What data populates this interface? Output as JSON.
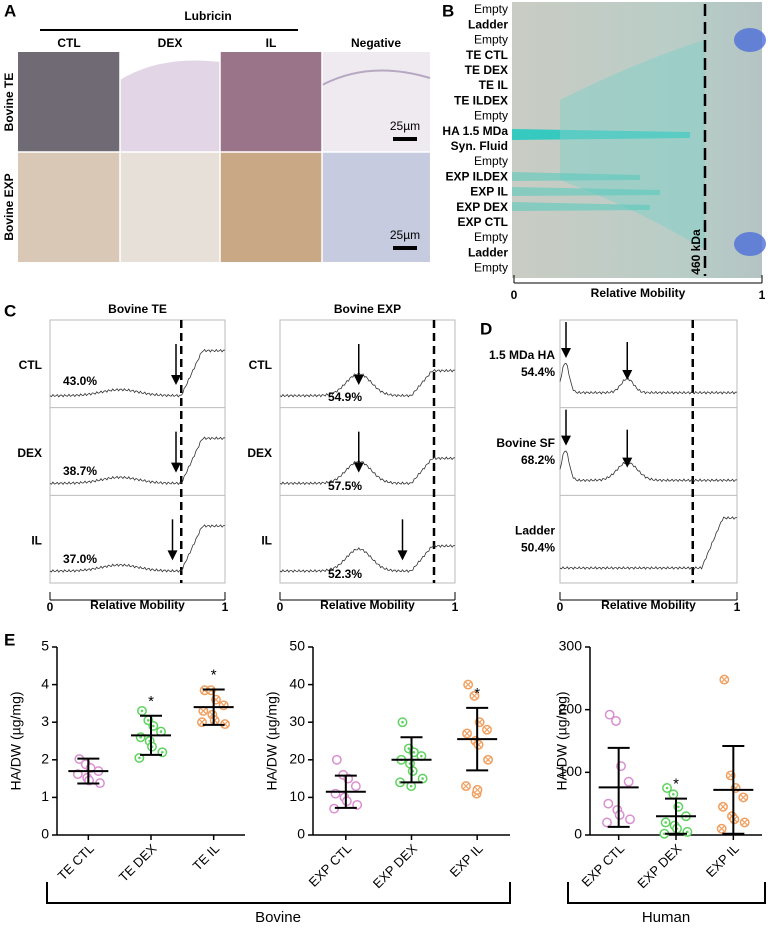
{
  "panel_a": {
    "label": "A",
    "group": "Lubricin",
    "columns": [
      "CTL",
      "DEX",
      "IL",
      "Negative"
    ],
    "rows": [
      "Bovine TE",
      "Bovine EXP"
    ],
    "scale_bars": [
      "25µm",
      "25µm"
    ]
  },
  "panel_b": {
    "label": "B",
    "lanes": [
      "Empty",
      "Ladder",
      "Empty",
      "TE CTL",
      "TE DEX",
      "TE IL",
      "TE ILDEX",
      "Empty",
      "HA 1.5 MDa",
      "Syn. Fluid",
      "Empty",
      "EXP ILDEX",
      "EXP IL",
      "EXP DEX",
      "EXP CTL",
      "Empty",
      "Ladder",
      "Empty"
    ],
    "marker": "460 kDa",
    "xlabel": "Relative Mobility",
    "xlim": [
      0,
      1
    ],
    "xticks": [
      0,
      1
    ]
  },
  "panel_c": {
    "label": "C",
    "xlabel": "Relative Mobility",
    "xlim": [
      0,
      1
    ],
    "xticks": [
      0,
      1
    ],
    "columns": [
      {
        "title": "Bovine TE",
        "rows": [
          {
            "name": "CTL",
            "percent": "43.0%"
          },
          {
            "name": "DEX",
            "percent": "38.7%"
          },
          {
            "name": "IL",
            "percent": "37.0%"
          }
        ]
      },
      {
        "title": "Bovine EXP",
        "rows": [
          {
            "name": "CTL",
            "percent": "54.9%"
          },
          {
            "name": "DEX",
            "percent": "57.5%"
          },
          {
            "name": "IL",
            "percent": "52.3%"
          }
        ]
      }
    ]
  },
  "panel_d": {
    "label": "D",
    "xlabel": "Relative Mobility",
    "xlim": [
      0,
      1
    ],
    "xticks": [
      0,
      1
    ],
    "rows": [
      {
        "name": "1.5 MDa HA",
        "percent": "54.4%"
      },
      {
        "name": "Bovine SF",
        "percent": "68.2%"
      },
      {
        "name": "Ladder",
        "percent": "50.4%"
      }
    ]
  },
  "panel_e": {
    "label": "E",
    "groups": [
      "Bovine",
      "Human"
    ]
  },
  "chart_data": [
    {
      "type": "dotplot",
      "ylabel": "HA/DW (µg/mg)",
      "ylim": [
        0,
        5
      ],
      "yticks": [
        0,
        1,
        2,
        3,
        4,
        5
      ],
      "categories": [
        "TE CTL",
        "TE DEX",
        "TE IL"
      ],
      "colors": [
        "#d98fd0",
        "#5fd35f",
        "#f0a060"
      ],
      "markers": [
        "circle",
        "dot",
        "cross"
      ],
      "values": [
        [
          2.02,
          1.88,
          1.78,
          1.7,
          1.62,
          1.52,
          1.45,
          1.38
        ],
        [
          3.3,
          3.05,
          2.9,
          2.75,
          2.6,
          2.5,
          2.35,
          2.2,
          2.05
        ],
        [
          3.85,
          3.85,
          3.6,
          3.45,
          3.3,
          3.2,
          3.05,
          2.95,
          3.0
        ]
      ],
      "means": [
        1.7,
        2.65,
        3.4
      ],
      "sd": [
        0.33,
        0.52,
        0.47
      ],
      "significance": [
        null,
        "*",
        "*"
      ]
    },
    {
      "type": "dotplot",
      "ylabel": "HA/DW (µg/mg)",
      "ylim": [
        0,
        50
      ],
      "yticks": [
        0,
        10,
        20,
        30,
        40,
        50
      ],
      "categories": [
        "EXP CTL",
        "EXP DEX",
        "EXP IL"
      ],
      "colors": [
        "#d98fd0",
        "#5fd35f",
        "#f0a060"
      ],
      "markers": [
        "circle",
        "dot",
        "cross"
      ],
      "values": [
        [
          20,
          16,
          15,
          13,
          11,
          10,
          9,
          8,
          7
        ],
        [
          30,
          23,
          22,
          21,
          20,
          19,
          17,
          15,
          14,
          13
        ],
        [
          40,
          37,
          30,
          28,
          27,
          25,
          24,
          20,
          13,
          11,
          12
        ]
      ],
      "means": [
        11.5,
        20,
        25.5
      ],
      "sd": [
        4.3,
        6,
        8.3
      ],
      "significance": [
        null,
        null,
        "*"
      ]
    },
    {
      "type": "dotplot",
      "ylabel": "HA/DW (µg/mg)",
      "ylim": [
        0,
        300
      ],
      "yticks": [
        0,
        100,
        200,
        300
      ],
      "categories": [
        "EXP CTL",
        "EXP DEX",
        "EXP IL"
      ],
      "colors": [
        "#d98fd0",
        "#5fd35f",
        "#f0a060"
      ],
      "markers": [
        "circle",
        "dot",
        "cross"
      ],
      "values": [
        [
          192,
          182,
          110,
          85,
          50,
          40,
          32,
          25,
          20
        ],
        [
          75,
          65,
          45,
          30,
          20,
          15,
          10,
          5,
          2
        ],
        [
          248,
          95,
          75,
          60,
          45,
          30,
          25,
          20,
          10
        ]
      ],
      "means": [
        76,
        30,
        72
      ],
      "sd": [
        63,
        28,
        70
      ],
      "significance": [
        null,
        "*",
        null
      ]
    }
  ]
}
